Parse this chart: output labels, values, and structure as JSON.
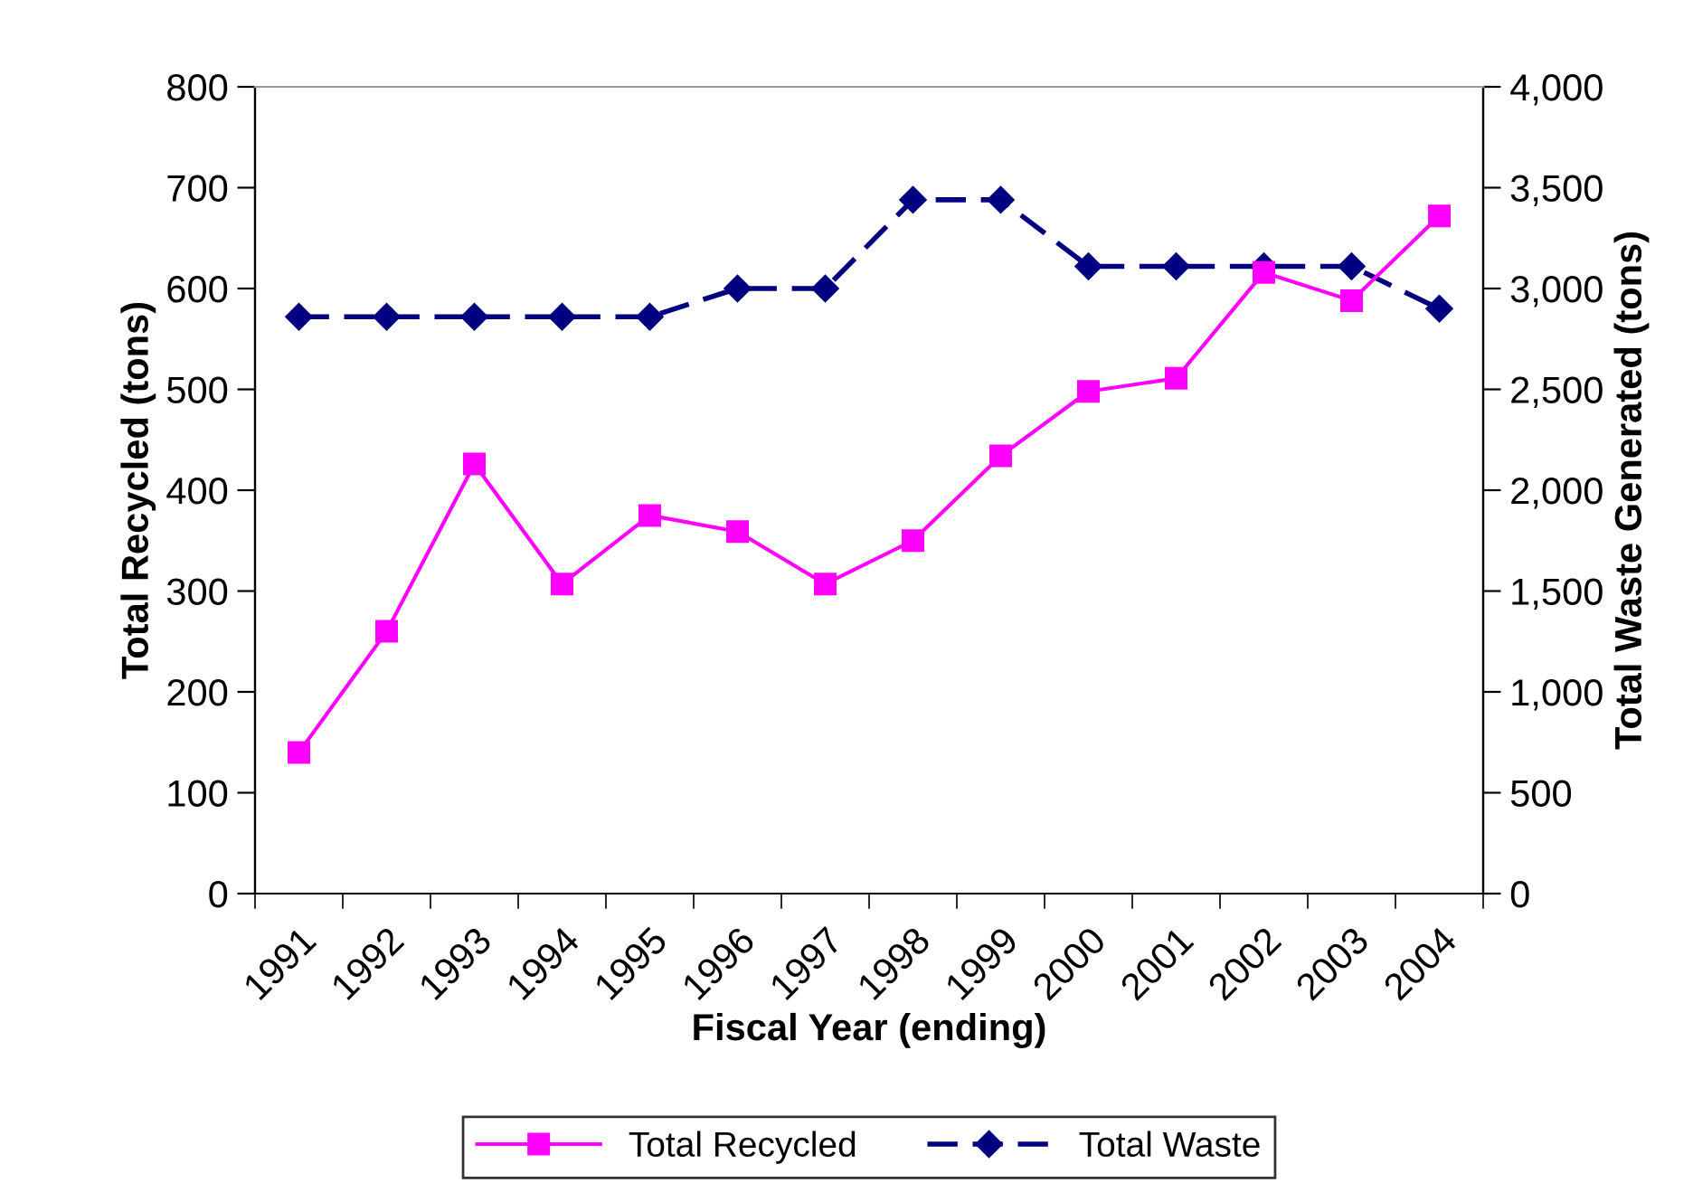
{
  "chart_data": {
    "type": "line",
    "xlabel": "Fiscal Year (ending)",
    "ylabel": "Total Recycled (tons)",
    "y2label": "Total Waste Generated (tons)",
    "categories": [
      "1991",
      "1992",
      "1993",
      "1994",
      "1995",
      "1996",
      "1997",
      "1998",
      "1999",
      "2000",
      "2001",
      "2002",
      "2003",
      "2004"
    ],
    "series": [
      {
        "name": "Total Recycled",
        "color": "#ff00ff",
        "marker": "square",
        "line_style": "solid",
        "values": [
          140,
          260,
          426,
          307,
          375,
          359,
          307,
          350,
          434,
          498,
          511,
          616,
          588,
          672
        ]
      },
      {
        "name": "Total Waste",
        "color": "#000080",
        "marker": "diamond",
        "line_style": "dashed",
        "axis": "y2",
        "values": [
          2860,
          2860,
          2860,
          2860,
          2860,
          3000,
          3000,
          3440,
          3440,
          3110,
          3110,
          3110,
          3110,
          2900
        ]
      }
    ],
    "ylim": [
      0,
      800
    ],
    "yticks": [
      0,
      100,
      200,
      300,
      400,
      500,
      600,
      700,
      800
    ],
    "y2lim": [
      0,
      4000
    ],
    "y2ticks": [
      {
        "value": 0,
        "label": "0"
      },
      {
        "value": 500,
        "label": "500"
      },
      {
        "value": 1000,
        "label": "1,000"
      },
      {
        "value": 1500,
        "label": "1,500"
      },
      {
        "value": 2000,
        "label": "2,000"
      },
      {
        "value": 2500,
        "label": "2,500"
      },
      {
        "value": 3000,
        "label": "3,000"
      },
      {
        "value": 3500,
        "label": "3,500"
      },
      {
        "value": 4000,
        "label": "4,000"
      }
    ],
    "grid": false,
    "legend": "bottom"
  }
}
